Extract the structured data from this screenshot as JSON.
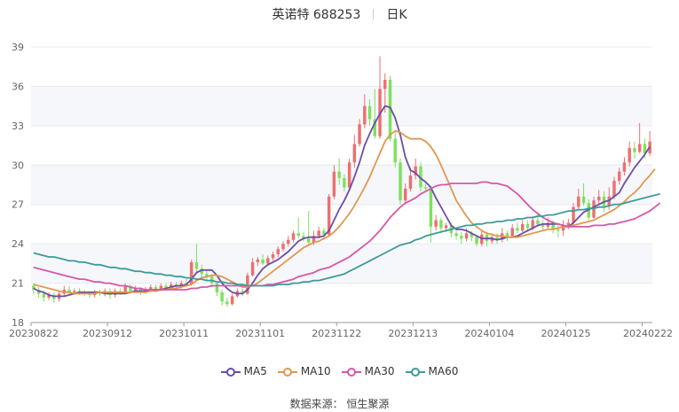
{
  "header": {
    "name": "英诺特 688253",
    "period": "日K"
  },
  "footer": {
    "source": "数据来源：  恒生聚源"
  },
  "chart_data": {
    "type": "candlestick",
    "title": "英诺特 688253",
    "period": "日K",
    "ylim": [
      18,
      39
    ],
    "yticks": [
      18,
      21,
      24,
      27,
      30,
      33,
      36,
      39
    ],
    "x_tick_labels": [
      "20230822",
      "20230912",
      "20231011",
      "20231101",
      "20231122",
      "20231213",
      "20240104",
      "20240125",
      "20240222"
    ],
    "x_tick_indices": [
      0,
      15,
      30,
      45,
      60,
      75,
      90,
      105,
      120
    ],
    "up_color": "#ee6f6f",
    "down_color": "#7ee05e",
    "legend_position": "bottom",
    "grid": true,
    "candles": [
      [
        20.8,
        20.5,
        21.0,
        20.2
      ],
      [
        20.5,
        20.2,
        20.7,
        19.9
      ],
      [
        20.2,
        19.9,
        20.4,
        19.6
      ],
      [
        19.9,
        20.1,
        20.3,
        19.7
      ],
      [
        20.1,
        19.8,
        20.3,
        19.5
      ],
      [
        19.8,
        20.2,
        20.4,
        19.6
      ],
      [
        20.2,
        20.5,
        20.8,
        20.0
      ],
      [
        20.5,
        20.3,
        20.8,
        20.1
      ],
      [
        20.3,
        20.4,
        20.6,
        20.1
      ],
      [
        20.4,
        20.3,
        20.6,
        20.1
      ],
      [
        20.3,
        20.2,
        20.5,
        20.0
      ],
      [
        20.2,
        20.1,
        20.4,
        19.9
      ],
      [
        20.1,
        20.3,
        20.5,
        19.9
      ],
      [
        20.3,
        20.2,
        20.5,
        20.0
      ],
      [
        20.2,
        20.4,
        20.6,
        20.0
      ],
      [
        20.4,
        20.1,
        20.6,
        19.8
      ],
      [
        20.1,
        20.4,
        20.6,
        19.9
      ],
      [
        20.4,
        20.3,
        20.6,
        20.1
      ],
      [
        20.3,
        20.8,
        21.0,
        20.2
      ],
      [
        20.8,
        20.4,
        20.9,
        20.2
      ],
      [
        20.4,
        20.6,
        20.8,
        20.3
      ],
      [
        20.6,
        20.3,
        20.7,
        20.1
      ],
      [
        20.3,
        20.5,
        20.7,
        20.2
      ],
      [
        20.5,
        20.7,
        20.9,
        20.4
      ],
      [
        20.7,
        20.5,
        20.9,
        20.3
      ],
      [
        20.5,
        20.8,
        21.0,
        20.4
      ],
      [
        20.8,
        20.6,
        21.0,
        20.5
      ],
      [
        20.6,
        20.9,
        21.1,
        20.5
      ],
      [
        20.9,
        20.7,
        21.1,
        20.6
      ],
      [
        20.7,
        21.0,
        21.2,
        20.6
      ],
      [
        21.0,
        20.9,
        21.3,
        20.8
      ],
      [
        20.9,
        22.6,
        22.8,
        20.8
      ],
      [
        22.6,
        22.1,
        24.0,
        21.8
      ],
      [
        22.1,
        21.7,
        22.4,
        21.4
      ],
      [
        21.7,
        21.5,
        21.9,
        21.2
      ],
      [
        21.5,
        21.0,
        21.6,
        20.7
      ],
      [
        21.0,
        20.3,
        21.1,
        20.0
      ],
      [
        20.3,
        19.6,
        20.5,
        19.3
      ],
      [
        19.6,
        19.4,
        19.9,
        19.2
      ],
      [
        19.4,
        20.0,
        20.2,
        19.3
      ],
      [
        20.0,
        20.4,
        20.6,
        19.9
      ],
      [
        20.4,
        20.2,
        20.6,
        20.0
      ],
      [
        20.2,
        21.6,
        21.8,
        20.1
      ],
      [
        21.6,
        22.6,
        22.9,
        21.5
      ],
      [
        22.6,
        22.8,
        23.0,
        22.3
      ],
      [
        22.8,
        22.5,
        23.2,
        22.4
      ],
      [
        22.5,
        22.9,
        23.1,
        22.4
      ],
      [
        22.9,
        23.2,
        23.4,
        22.7
      ],
      [
        23.2,
        23.6,
        23.8,
        23.0
      ],
      [
        23.6,
        24.0,
        24.2,
        23.4
      ],
      [
        24.0,
        24.3,
        24.6,
        23.8
      ],
      [
        24.3,
        24.8,
        25.0,
        24.1
      ],
      [
        24.8,
        24.6,
        26.0,
        24.4
      ],
      [
        24.6,
        24.4,
        24.9,
        24.2
      ],
      [
        24.4,
        24.1,
        26.5,
        24.0
      ],
      [
        24.1,
        24.6,
        25.0,
        23.9
      ],
      [
        24.6,
        25.0,
        25.3,
        24.4
      ],
      [
        25.0,
        24.7,
        25.2,
        24.3
      ],
      [
        24.7,
        27.6,
        27.8,
        24.6
      ],
      [
        27.6,
        29.5,
        30.0,
        27.4
      ],
      [
        29.5,
        29.0,
        30.5,
        28.5
      ],
      [
        29.0,
        28.3,
        29.3,
        28.0
      ],
      [
        28.3,
        30.2,
        30.5,
        28.1
      ],
      [
        30.2,
        31.6,
        32.3,
        29.8
      ],
      [
        31.6,
        33.1,
        33.5,
        31.4
      ],
      [
        33.1,
        34.5,
        35.4,
        32.8
      ],
      [
        34.5,
        33.5,
        35.0,
        33.0
      ],
      [
        33.5,
        32.2,
        35.8,
        32.0
      ],
      [
        32.2,
        35.8,
        38.3,
        32.0
      ],
      [
        35.8,
        36.5,
        37.0,
        34.0
      ],
      [
        36.5,
        32.0,
        36.8,
        31.8
      ],
      [
        32.0,
        30.2,
        32.5,
        29.8
      ],
      [
        30.2,
        27.3,
        30.5,
        27.0
      ],
      [
        27.3,
        28.2,
        28.6,
        27.0
      ],
      [
        28.2,
        29.2,
        29.8,
        28.0
      ],
      [
        29.2,
        29.9,
        30.5,
        28.9
      ],
      [
        29.9,
        28.3,
        30.2,
        28.0
      ],
      [
        28.3,
        28.2,
        28.6,
        27.9
      ],
      [
        28.2,
        25.3,
        28.4,
        24.1
      ],
      [
        25.3,
        25.8,
        26.2,
        25.0
      ],
      [
        25.8,
        25.2,
        26.0,
        24.8
      ],
      [
        25.2,
        25.4,
        25.6,
        24.9
      ],
      [
        25.4,
        24.8,
        25.6,
        24.5
      ],
      [
        24.8,
        24.6,
        25.0,
        24.3
      ],
      [
        24.6,
        24.4,
        24.9,
        24.0
      ],
      [
        24.4,
        24.8,
        25.2,
        24.2
      ],
      [
        24.8,
        24.5,
        25.0,
        24.2
      ],
      [
        24.5,
        24.0,
        24.7,
        23.8
      ],
      [
        24.0,
        24.7,
        25.0,
        23.8
      ],
      [
        24.7,
        24.2,
        24.9,
        23.8
      ],
      [
        24.2,
        24.5,
        24.8,
        24.0
      ],
      [
        24.5,
        24.3,
        24.8,
        24.0
      ],
      [
        24.3,
        24.8,
        25.2,
        24.1
      ],
      [
        24.8,
        24.6,
        25.0,
        24.2
      ],
      [
        24.6,
        25.2,
        25.5,
        24.5
      ],
      [
        25.2,
        25.0,
        25.6,
        24.8
      ],
      [
        25.0,
        25.5,
        25.8,
        24.9
      ],
      [
        25.5,
        25.2,
        25.8,
        24.9
      ],
      [
        25.2,
        25.8,
        26.1,
        25.0
      ],
      [
        25.8,
        25.5,
        26.4,
        25.3
      ],
      [
        25.5,
        25.3,
        25.8,
        25.0
      ],
      [
        25.3,
        25.6,
        26.0,
        25.1
      ],
      [
        25.6,
        25.1,
        25.8,
        24.8
      ],
      [
        25.1,
        25.0,
        25.4,
        24.5
      ],
      [
        25.0,
        25.4,
        25.8,
        24.6
      ],
      [
        25.4,
        25.6,
        25.9,
        25.1
      ],
      [
        25.6,
        26.8,
        27.1,
        25.4
      ],
      [
        26.8,
        27.6,
        28.2,
        26.5
      ],
      [
        27.6,
        27.1,
        28.6,
        26.9
      ],
      [
        27.1,
        26.0,
        27.4,
        25.8
      ],
      [
        26.0,
        27.3,
        27.6,
        25.9
      ],
      [
        27.3,
        27.6,
        28.1,
        27.0
      ],
      [
        27.6,
        26.9,
        28.0,
        26.4
      ],
      [
        26.9,
        27.6,
        28.3,
        26.6
      ],
      [
        27.6,
        28.8,
        29.1,
        27.4
      ],
      [
        28.8,
        29.5,
        29.8,
        28.5
      ],
      [
        29.5,
        30.2,
        30.6,
        29.2
      ],
      [
        30.2,
        31.3,
        31.8,
        29.9
      ],
      [
        31.3,
        31.0,
        31.8,
        30.5
      ],
      [
        31.0,
        31.6,
        33.2,
        30.9
      ],
      [
        31.6,
        30.9,
        32.0,
        30.5
      ],
      [
        30.9,
        31.8,
        32.6,
        30.7
      ]
    ],
    "series": [
      {
        "name": "MA5",
        "color": "#6b4ea6",
        "values": [
          20.6,
          20.4,
          20.3,
          20.1,
          20.0,
          20.0,
          20.0,
          20.1,
          20.2,
          20.3,
          20.3,
          20.3,
          20.3,
          20.3,
          20.2,
          20.2,
          20.2,
          20.2,
          20.2,
          20.3,
          20.4,
          20.4,
          20.4,
          20.5,
          20.5,
          20.5,
          20.6,
          20.7,
          20.8,
          20.8,
          20.9,
          21.3,
          21.8,
          22.0,
          22.0,
          22.0,
          21.6,
          21.0,
          20.6,
          20.3,
          20.2,
          20.2,
          20.5,
          21.0,
          21.6,
          22.1,
          22.4,
          22.6,
          22.8,
          23.1,
          23.4,
          23.8,
          24.2,
          24.4,
          24.5,
          24.5,
          24.5,
          24.6,
          25.0,
          25.8,
          26.6,
          27.3,
          28.1,
          29.1,
          30.2,
          31.5,
          32.4,
          33.2,
          33.9,
          34.5,
          34.4,
          33.6,
          32.3,
          30.6,
          29.6,
          29.4,
          29.0,
          28.7,
          28.3,
          27.5,
          26.8,
          26.1,
          25.4,
          25.1,
          25.1,
          25.0,
          24.8,
          24.6,
          24.4,
          24.4,
          24.4,
          24.3,
          24.4,
          24.5,
          24.5,
          24.6,
          24.8,
          25.0,
          25.2,
          25.4,
          25.5,
          25.5,
          25.5,
          25.5,
          25.4,
          25.3,
          25.6,
          26.0,
          26.4,
          26.6,
          26.8,
          27.0,
          27.2,
          27.3,
          27.6,
          27.9,
          28.6,
          29.2,
          29.8,
          30.3,
          30.8,
          31.4
        ]
      },
      {
        "name": "MA10",
        "color": "#e1974e",
        "values": [
          20.9,
          20.8,
          20.7,
          20.6,
          20.5,
          20.4,
          20.3,
          20.3,
          20.2,
          20.2,
          20.2,
          20.2,
          20.2,
          20.3,
          20.3,
          20.3,
          20.3,
          20.3,
          20.3,
          20.3,
          20.3,
          20.3,
          20.3,
          20.4,
          20.4,
          20.5,
          20.5,
          20.6,
          20.6,
          20.7,
          20.8,
          20.9,
          21.2,
          21.4,
          21.5,
          21.6,
          21.6,
          21.5,
          21.3,
          21.1,
          20.9,
          20.7,
          20.7,
          20.8,
          21.0,
          21.3,
          21.6,
          21.9,
          22.2,
          22.5,
          22.8,
          23.1,
          23.4,
          23.7,
          23.9,
          24.1,
          24.2,
          24.4,
          24.6,
          24.9,
          25.3,
          25.8,
          26.3,
          26.9,
          27.6,
          28.3,
          29.1,
          30.0,
          30.9,
          31.8,
          32.3,
          32.6,
          32.5,
          32.2,
          32.0,
          32.0,
          32.0,
          31.8,
          31.4,
          30.8,
          30.0,
          29.1,
          28.2,
          27.3,
          26.7,
          26.1,
          25.6,
          25.3,
          25.0,
          24.8,
          24.7,
          24.6,
          24.6,
          24.5,
          24.5,
          24.5,
          24.6,
          24.7,
          24.8,
          24.9,
          25.0,
          25.1,
          25.1,
          25.2,
          25.3,
          25.3,
          25.4,
          25.5,
          25.6,
          25.7,
          25.8,
          26.0,
          26.2,
          26.4,
          26.6,
          26.9,
          27.2,
          27.6,
          27.9,
          28.3,
          28.8,
          29.2,
          29.7
        ]
      },
      {
        "name": "MA30",
        "color": "#d657a8",
        "values": [
          22.2,
          22.1,
          22.0,
          21.9,
          21.8,
          21.7,
          21.6,
          21.5,
          21.4,
          21.3,
          21.3,
          21.2,
          21.1,
          21.1,
          21.0,
          21.0,
          20.9,
          20.8,
          20.8,
          20.7,
          20.6,
          20.6,
          20.5,
          20.5,
          20.5,
          20.5,
          20.5,
          20.5,
          20.5,
          20.5,
          20.5,
          20.6,
          20.6,
          20.7,
          20.7,
          20.8,
          20.8,
          20.8,
          20.8,
          20.8,
          20.8,
          20.8,
          20.8,
          20.8,
          20.8,
          20.8,
          20.9,
          20.9,
          21.0,
          21.1,
          21.2,
          21.3,
          21.5,
          21.6,
          21.7,
          21.8,
          22.0,
          22.1,
          22.2,
          22.4,
          22.6,
          22.8,
          23.0,
          23.3,
          23.6,
          23.9,
          24.2,
          24.6,
          25.0,
          25.5,
          26.0,
          26.4,
          26.8,
          27.1,
          27.3,
          27.5,
          27.8,
          28.0,
          28.2,
          28.4,
          28.5,
          28.5,
          28.6,
          28.6,
          28.6,
          28.6,
          28.6,
          28.6,
          28.7,
          28.7,
          28.6,
          28.6,
          28.5,
          28.4,
          28.1,
          27.8,
          27.4,
          27.0,
          26.6,
          26.3,
          26.0,
          25.8,
          25.6,
          25.5,
          25.4,
          25.3,
          25.3,
          25.3,
          25.3,
          25.3,
          25.4,
          25.4,
          25.4,
          25.5,
          25.5,
          25.6,
          25.7,
          25.8,
          25.9,
          26.1,
          26.3,
          26.5,
          26.8,
          27.1
        ]
      },
      {
        "name": "MA60",
        "color": "#3d9b9c",
        "values": [
          23.3,
          23.2,
          23.1,
          23.0,
          23.0,
          22.9,
          22.8,
          22.7,
          22.7,
          22.6,
          22.6,
          22.5,
          22.4,
          22.4,
          22.3,
          22.2,
          22.2,
          22.1,
          22.1,
          22.0,
          21.9,
          21.9,
          21.8,
          21.8,
          21.7,
          21.7,
          21.6,
          21.6,
          21.5,
          21.5,
          21.4,
          21.4,
          21.3,
          21.3,
          21.2,
          21.2,
          21.1,
          21.1,
          21.0,
          21.0,
          20.9,
          20.9,
          20.8,
          20.8,
          20.8,
          20.8,
          20.8,
          20.8,
          20.9,
          20.9,
          20.9,
          21.0,
          21.0,
          21.1,
          21.1,
          21.2,
          21.2,
          21.3,
          21.4,
          21.5,
          21.6,
          21.7,
          21.9,
          22.1,
          22.3,
          22.5,
          22.7,
          22.9,
          23.1,
          23.3,
          23.5,
          23.7,
          23.9,
          24.0,
          24.1,
          24.3,
          24.4,
          24.6,
          24.7,
          24.8,
          24.9,
          25.0,
          25.1,
          25.2,
          25.3,
          25.4,
          25.4,
          25.5,
          25.5,
          25.6,
          25.6,
          25.7,
          25.7,
          25.8,
          25.8,
          25.9,
          25.9,
          26.0,
          26.0,
          26.1,
          26.1,
          26.2,
          26.2,
          26.3,
          26.4,
          26.5,
          26.5,
          26.6,
          26.6,
          26.7,
          26.7,
          26.8,
          26.8,
          26.9,
          27.0,
          27.0,
          27.1,
          27.2,
          27.3,
          27.4,
          27.5,
          27.6,
          27.7,
          27.8
        ]
      }
    ]
  }
}
